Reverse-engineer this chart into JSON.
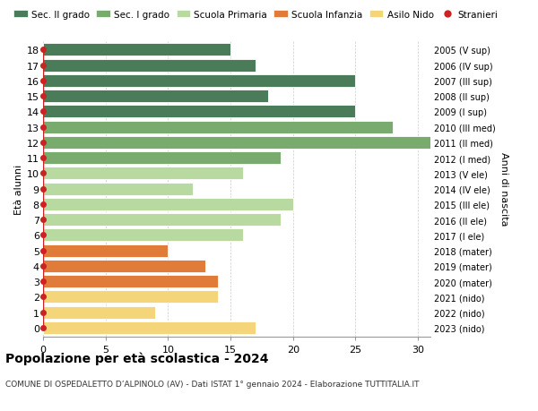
{
  "ages": [
    18,
    17,
    16,
    15,
    14,
    13,
    12,
    11,
    10,
    9,
    8,
    7,
    6,
    5,
    4,
    3,
    2,
    1,
    0
  ],
  "values": [
    15,
    17,
    25,
    18,
    25,
    28,
    31,
    19,
    16,
    12,
    20,
    19,
    16,
    10,
    13,
    14,
    14,
    9,
    17
  ],
  "colors": [
    "#4a7c59",
    "#4a7c59",
    "#4a7c59",
    "#4a7c59",
    "#4a7c59",
    "#7aab6e",
    "#7aab6e",
    "#7aab6e",
    "#b8d9a0",
    "#b8d9a0",
    "#b8d9a0",
    "#b8d9a0",
    "#b8d9a0",
    "#e07b39",
    "#e07b39",
    "#e07b39",
    "#f5d57a",
    "#f5d57a",
    "#f5d57a"
  ],
  "right_labels": [
    "2005 (V sup)",
    "2006 (IV sup)",
    "2007 (III sup)",
    "2008 (II sup)",
    "2009 (I sup)",
    "2010 (III med)",
    "2011 (II med)",
    "2012 (I med)",
    "2013 (V ele)",
    "2014 (IV ele)",
    "2015 (III ele)",
    "2016 (II ele)",
    "2017 (I ele)",
    "2018 (mater)",
    "2019 (mater)",
    "2020 (mater)",
    "2021 (nido)",
    "2022 (nido)",
    "2023 (nido)"
  ],
  "legend_labels": [
    "Sec. II grado",
    "Sec. I grado",
    "Scuola Primaria",
    "Scuola Infanzia",
    "Asilo Nido",
    "Stranieri"
  ],
  "legend_colors": [
    "#4a7c59",
    "#7aab6e",
    "#b8d9a0",
    "#e07b39",
    "#f5d57a",
    "#cc2222"
  ],
  "title": "Popolazione per età scolastica - 2024",
  "subtitle": "COMUNE DI OSPEDALETTO D’ALPINOLO (AV) - Dati ISTAT 1° gennaio 2024 - Elaborazione TUTTITALIA.IT",
  "ylabel": "Età alunni",
  "right_ylabel": "Anni di nascita",
  "xlim": [
    0,
    31
  ],
  "xticks": [
    0,
    5,
    10,
    15,
    20,
    25,
    30
  ],
  "bg_color": "#ffffff",
  "grid_color": "#cccccc",
  "stranieri_color": "#cc2222",
  "bar_height": 0.82
}
